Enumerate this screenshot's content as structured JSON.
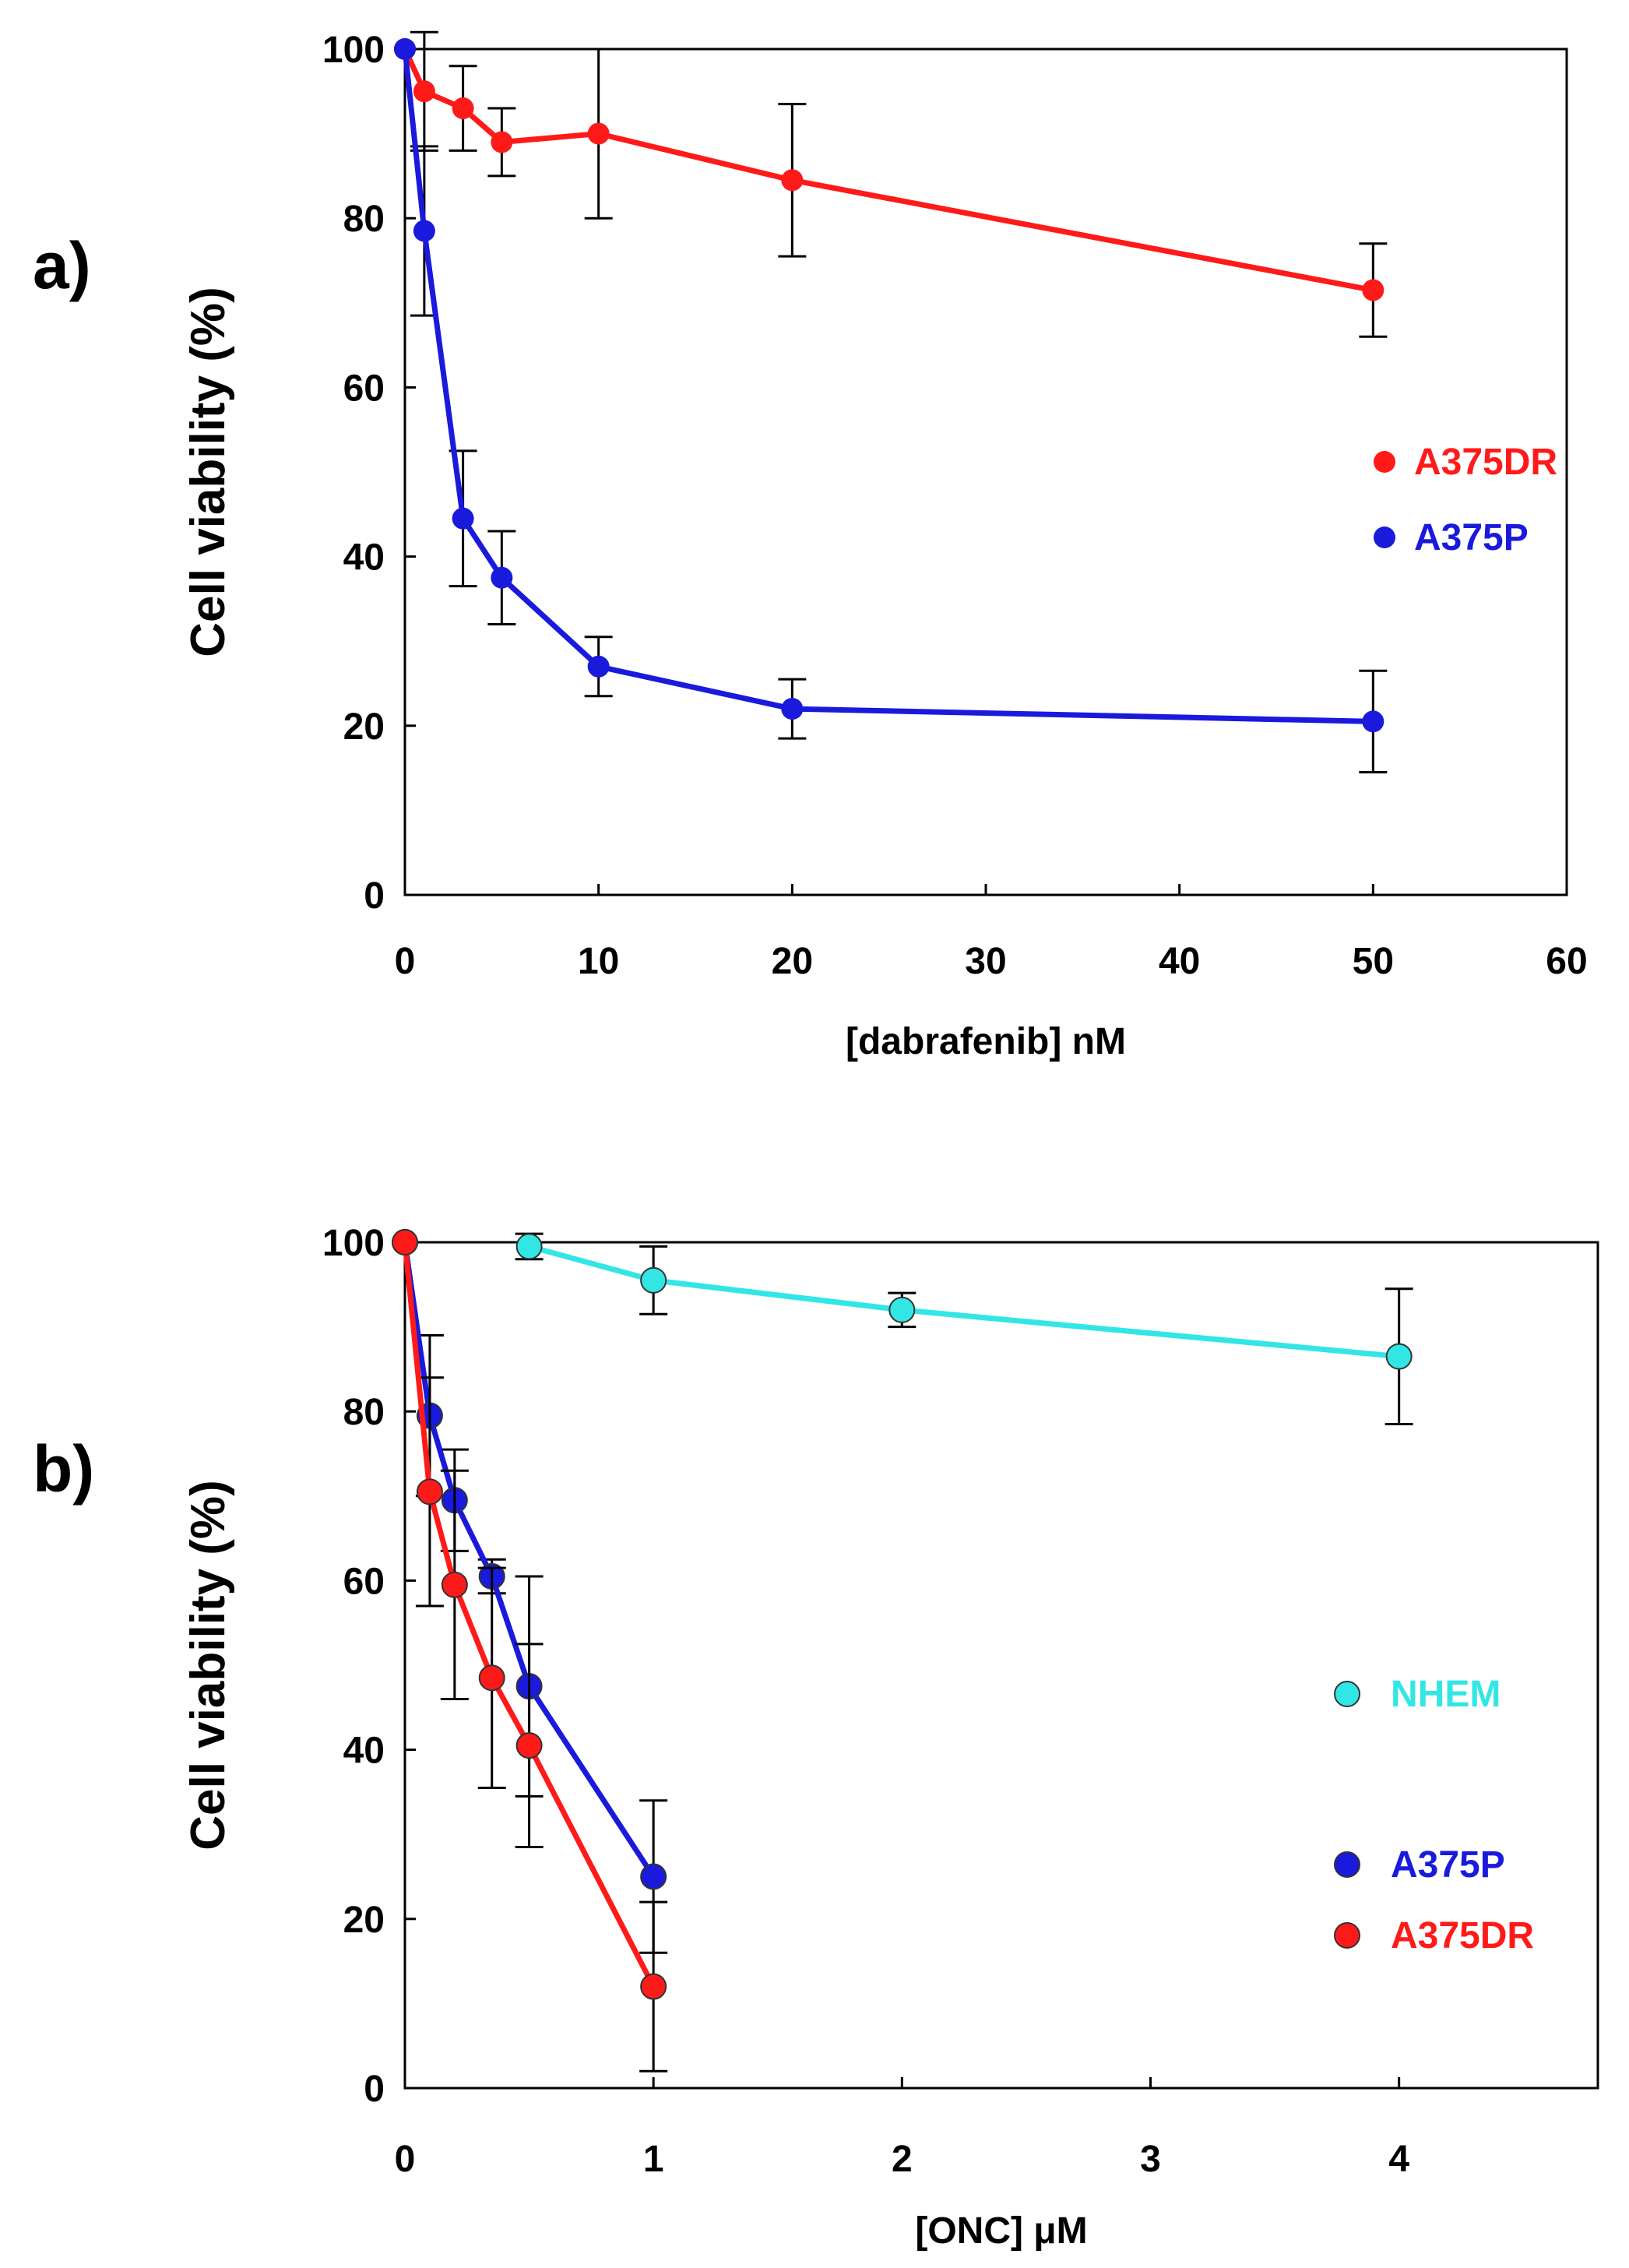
{
  "chart_data": [
    {
      "type": "line",
      "panel_label": "a)",
      "title": "",
      "xlabel": "[dabrafenib] nM",
      "ylabel": "Cell  viability  (%)",
      "xlim": [
        0,
        60
      ],
      "ylim": [
        0,
        100
      ],
      "xticks": [
        0,
        10,
        20,
        30,
        40,
        50,
        60
      ],
      "yticks": [
        0,
        20,
        40,
        60,
        80,
        100
      ],
      "grid": false,
      "legend_position": "right",
      "series": [
        {
          "name": "A375DR",
          "color": "#ff1a1a",
          "marker_face": "#ff1a1a",
          "x": [
            0,
            1,
            3,
            5,
            10,
            20,
            50
          ],
          "y": [
            100,
            95,
            93,
            89,
            90,
            84.5,
            71.5
          ],
          "err": [
            0,
            7,
            5,
            4,
            10,
            9,
            5.5
          ]
        },
        {
          "name": "A375P",
          "color": "#1a1adc",
          "marker_face": "#1a1adc",
          "x": [
            0,
            1,
            3,
            5,
            10,
            20,
            50
          ],
          "y": [
            100,
            78.5,
            44.5,
            37.5,
            27,
            22,
            20.5
          ],
          "err": [
            0,
            10,
            8,
            5.5,
            3.5,
            3.5,
            6
          ]
        }
      ]
    },
    {
      "type": "line",
      "panel_label": "b)",
      "title": "",
      "xlabel": "[ONC] μM",
      "ylabel": "Cell  viability  (%)",
      "xlim": [
        0,
        4.8
      ],
      "ylim": [
        0,
        100
      ],
      "xticks": [
        0,
        1,
        2,
        3,
        4
      ],
      "yticks": [
        0,
        20,
        40,
        60,
        80,
        100
      ],
      "grid": false,
      "legend_position": "right",
      "series": [
        {
          "name": "NHEM",
          "color": "#33e6e6",
          "marker_face": "#33e6e6",
          "x": [
            0.5,
            1,
            2,
            4
          ],
          "y": [
            99.5,
            95.5,
            92,
            86.5
          ],
          "err": [
            1.5,
            4,
            2,
            8
          ]
        },
        {
          "name": "A375P",
          "color": "#1a1adc",
          "marker_face": "#1a1adc",
          "x": [
            0,
            0.1,
            0.2,
            0.35,
            0.5,
            1
          ],
          "y": [
            100,
            79.5,
            69.5,
            60.5,
            47.5,
            25
          ],
          "err": [
            0,
            9.5,
            6,
            2,
            13,
            9
          ]
        },
        {
          "name": "A375DR",
          "color": "#ff1a1a",
          "marker_face": "#ff1a1a",
          "x": [
            0,
            0.1,
            0.2,
            0.35,
            0.5,
            1
          ],
          "y": [
            100,
            70.5,
            59.5,
            48.5,
            40.5,
            12
          ],
          "err": [
            0,
            13.5,
            13.5,
            13,
            12,
            10
          ]
        }
      ]
    }
  ]
}
